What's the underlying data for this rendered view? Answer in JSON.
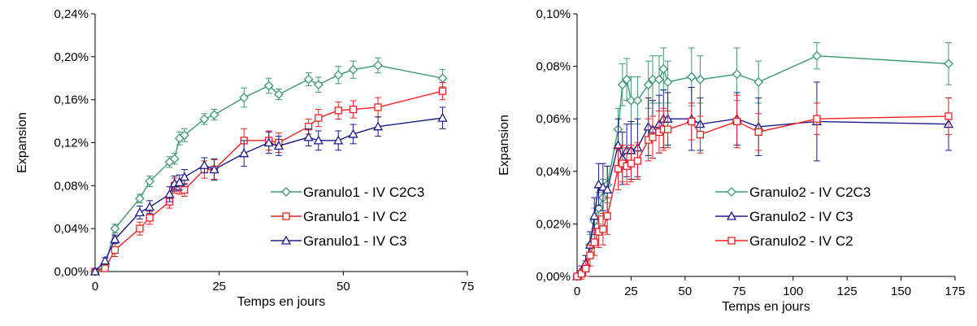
{
  "chart_data": [
    {
      "type": "line",
      "xlabel": "Temps en jours",
      "ylabel": "Expansion",
      "xlim": [
        0,
        75
      ],
      "ylim": [
        0,
        0.24
      ],
      "xticks": [
        "0",
        "25",
        "50",
        "75"
      ],
      "yticks": [
        "0,00%",
        "0,04%",
        "0,08%",
        "0,12%",
        "0,16%",
        "0,20%",
        "0,24%"
      ],
      "grid": false,
      "legend_position": "bottom-right",
      "series": [
        {
          "name": "Granulo1 - IV C2C3",
          "color": "#3a9a6e",
          "marker": "diamond",
          "x": [
            0,
            2,
            4,
            9,
            11,
            15,
            16,
            17,
            18,
            22,
            24,
            30,
            35,
            37,
            43,
            45,
            49,
            52,
            57,
            70
          ],
          "y": [
            0.0,
            0.005,
            0.04,
            0.068,
            0.084,
            0.102,
            0.105,
            0.124,
            0.127,
            0.142,
            0.146,
            0.162,
            0.173,
            0.165,
            0.179,
            0.174,
            0.183,
            0.188,
            0.192,
            0.18
          ],
          "err": [
            0.002,
            0.002,
            0.004,
            0.004,
            0.005,
            0.005,
            0.005,
            0.006,
            0.006,
            0.005,
            0.005,
            0.009,
            0.007,
            0.005,
            0.006,
            0.007,
            0.008,
            0.008,
            0.007,
            0.008
          ]
        },
        {
          "name": "Granulo1 - IV C2",
          "color": "#ee2020",
          "marker": "square",
          "x": [
            0,
            2,
            4,
            9,
            11,
            15,
            16,
            17,
            18,
            22,
            24,
            30,
            35,
            37,
            43,
            45,
            49,
            52,
            57,
            70
          ],
          "y": [
            0.0,
            0.003,
            0.02,
            0.04,
            0.05,
            0.065,
            0.08,
            0.078,
            0.076,
            0.095,
            0.095,
            0.122,
            0.122,
            0.12,
            0.135,
            0.143,
            0.15,
            0.151,
            0.153,
            0.168
          ],
          "err": [
            0.002,
            0.002,
            0.006,
            0.006,
            0.006,
            0.006,
            0.007,
            0.006,
            0.006,
            0.008,
            0.009,
            0.011,
            0.009,
            0.009,
            0.007,
            0.008,
            0.008,
            0.008,
            0.009,
            0.008
          ]
        },
        {
          "name": "Granulo1 - IV C3",
          "color": "#1a1a8c",
          "marker": "triangle",
          "x": [
            0,
            2,
            4,
            9,
            11,
            15,
            16,
            17,
            18,
            22,
            24,
            30,
            35,
            37,
            43,
            45,
            49,
            52,
            57,
            70
          ],
          "y": [
            0.0,
            0.01,
            0.03,
            0.055,
            0.06,
            0.072,
            0.082,
            0.083,
            0.088,
            0.099,
            0.095,
            0.11,
            0.12,
            0.117,
            0.125,
            0.122,
            0.122,
            0.128,
            0.135,
            0.143
          ],
          "err": [
            0.002,
            0.003,
            0.004,
            0.006,
            0.006,
            0.007,
            0.007,
            0.007,
            0.007,
            0.007,
            0.01,
            0.012,
            0.01,
            0.009,
            0.008,
            0.009,
            0.009,
            0.009,
            0.009,
            0.01
          ]
        }
      ]
    },
    {
      "type": "line",
      "xlabel": "Temps en jours",
      "ylabel": "Expansion",
      "xlim": [
        0,
        175
      ],
      "ylim": [
        0,
        0.1
      ],
      "xticks": [
        "0",
        "25",
        "50",
        "75",
        "100",
        "125",
        "150",
        "175"
      ],
      "yticks": [
        "0,00%",
        "0,02%",
        "0,04%",
        "0,06%",
        "0,08%",
        "0,10%"
      ],
      "grid": false,
      "legend_position": "bottom-center",
      "series": [
        {
          "name": "Granulo2 - IV C2C3",
          "color": "#3a9a6e",
          "marker": "diamond",
          "x": [
            0,
            2,
            4,
            6,
            8,
            10,
            12,
            14,
            19,
            21,
            23,
            25,
            28,
            33,
            35,
            38,
            40,
            42,
            53,
            57,
            74,
            84,
            111,
            172
          ],
          "y": [
            0.0,
            0.001,
            0.004,
            0.012,
            0.021,
            0.026,
            0.03,
            0.035,
            0.056,
            0.073,
            0.075,
            0.067,
            0.067,
            0.073,
            0.075,
            0.075,
            0.079,
            0.074,
            0.076,
            0.075,
            0.077,
            0.074,
            0.084,
            0.081
          ],
          "err": [
            0.001,
            0.001,
            0.002,
            0.004,
            0.005,
            0.006,
            0.007,
            0.007,
            0.008,
            0.008,
            0.008,
            0.009,
            0.009,
            0.009,
            0.009,
            0.009,
            0.008,
            0.008,
            0.011,
            0.009,
            0.01,
            0.008,
            0.005,
            0.008
          ]
        },
        {
          "name": "Granulo2 - IV C3",
          "color": "#1a1a8c",
          "marker": "triangle",
          "x": [
            0,
            2,
            4,
            6,
            8,
            10,
            12,
            14,
            19,
            21,
            23,
            25,
            28,
            33,
            35,
            38,
            40,
            42,
            53,
            57,
            74,
            84,
            111,
            172
          ],
          "y": [
            0.0,
            0.002,
            0.005,
            0.012,
            0.023,
            0.035,
            0.034,
            0.033,
            0.05,
            0.045,
            0.048,
            0.048,
            0.049,
            0.057,
            0.056,
            0.058,
            0.06,
            0.06,
            0.06,
            0.058,
            0.06,
            0.057,
            0.059,
            0.058
          ],
          "err": [
            0.001,
            0.002,
            0.003,
            0.005,
            0.007,
            0.008,
            0.009,
            0.009,
            0.01,
            0.01,
            0.01,
            0.011,
            0.011,
            0.011,
            0.011,
            0.011,
            0.011,
            0.01,
            0.012,
            0.01,
            0.01,
            0.011,
            0.015,
            0.01
          ]
        },
        {
          "name": "Granulo2 - IV C2",
          "color": "#ee2020",
          "marker": "square",
          "x": [
            0,
            2,
            4,
            6,
            8,
            10,
            12,
            14,
            19,
            21,
            23,
            25,
            28,
            33,
            35,
            38,
            40,
            42,
            53,
            57,
            74,
            84,
            111,
            172
          ],
          "y": [
            0.0,
            0.001,
            0.003,
            0.008,
            0.013,
            0.017,
            0.018,
            0.023,
            0.041,
            0.043,
            0.042,
            0.043,
            0.044,
            0.052,
            0.053,
            0.055,
            0.056,
            0.056,
            0.059,
            0.054,
            0.059,
            0.055,
            0.06,
            0.061
          ],
          "err": [
            0.001,
            0.002,
            0.003,
            0.004,
            0.005,
            0.006,
            0.006,
            0.007,
            0.008,
            0.007,
            0.007,
            0.007,
            0.007,
            0.008,
            0.008,
            0.008,
            0.008,
            0.007,
            0.007,
            0.007,
            0.01,
            0.007,
            0.006,
            0.007
          ]
        }
      ]
    }
  ]
}
